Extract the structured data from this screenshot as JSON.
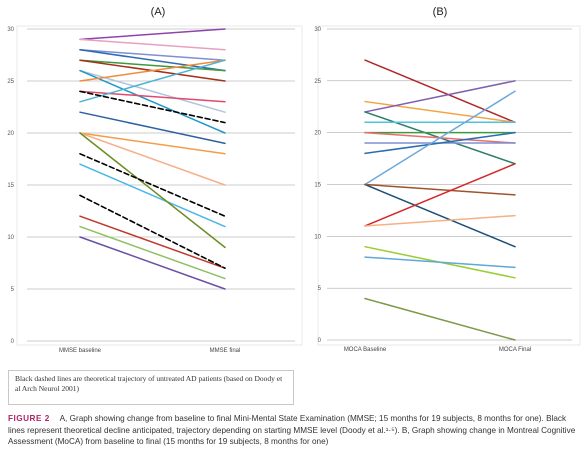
{
  "note": "Black dashed lines are theoretical trajectory of untreated AD patients (based on Doody et al Arch Neurol 2001)",
  "caption": {
    "label": "FIGURE 2",
    "text": "A, Graph showing change from baseline to final Mini-Mental State Examination (MMSE; 15 months for 19 subjects, 8 months for one). Black lines represent theoretical decline anticipated, trajectory depending on starting MMSE level (Doody et al.¹·⁵). B, Graph showing change in Montreal Cognitive Assessment (MoCA) from baseline to final (15 months for 19 subjects, 8 months for one)"
  },
  "chart_data": [
    {
      "panel": "(A)",
      "type": "line",
      "categories": [
        "MMSE baseline",
        "MMSE final"
      ],
      "ylim": [
        0,
        30
      ],
      "yticks": [
        0,
        5,
        10,
        15,
        20,
        25,
        30
      ],
      "grid": true,
      "series": [
        {
          "values": [
            29,
            30
          ],
          "color": "#8e44ad"
        },
        {
          "values": [
            29,
            28
          ],
          "color": "#e8a0c0"
        },
        {
          "values": [
            28,
            27
          ],
          "color": "#7f8fd0"
        },
        {
          "values": [
            28,
            26
          ],
          "color": "#2b6cb0"
        },
        {
          "values": [
            27,
            26
          ],
          "color": "#3c9a3c"
        },
        {
          "values": [
            27,
            25
          ],
          "color": "#a3321c"
        },
        {
          "values": [
            26,
            22
          ],
          "color": "#b0c4de"
        },
        {
          "values": [
            26,
            20
          ],
          "color": "#1f98c4"
        },
        {
          "values": [
            25,
            27
          ],
          "color": "#f08a3c"
        },
        {
          "values": [
            24,
            23
          ],
          "color": "#e04b6b"
        },
        {
          "values": [
            23,
            27
          ],
          "color": "#4eb3d3"
        },
        {
          "values": [
            22,
            19
          ],
          "color": "#2f5fa0"
        },
        {
          "values": [
            20,
            18
          ],
          "color": "#f39c4b"
        },
        {
          "values": [
            20,
            15
          ],
          "color": "#f5b08a"
        },
        {
          "values": [
            17,
            11
          ],
          "color": "#4db6e6"
        },
        {
          "values": [
            12,
            7
          ],
          "color": "#c0392b"
        },
        {
          "values": [
            11,
            6
          ],
          "color": "#8fc064"
        },
        {
          "values": [
            10,
            5
          ],
          "color": "#6a51a3"
        },
        {
          "values": [
            20,
            9
          ],
          "color": "#6b8e23"
        },
        {
          "values": [
            24,
            21
          ],
          "color": "#000000",
          "dashed": true
        },
        {
          "values": [
            18,
            12
          ],
          "color": "#000000",
          "dashed": true
        },
        {
          "values": [
            14,
            7
          ],
          "color": "#000000",
          "dashed": true
        }
      ]
    },
    {
      "panel": "(B)",
      "type": "line",
      "categories": [
        "MOCA Baseline",
        "MOCA Final"
      ],
      "ylim": [
        0,
        30
      ],
      "yticks": [
        0,
        5,
        10,
        15,
        20,
        25,
        30
      ],
      "grid": true,
      "series": [
        {
          "values": [
            27,
            21
          ],
          "color": "#b0282c"
        },
        {
          "values": [
            23,
            21
          ],
          "color": "#f5a442"
        },
        {
          "values": [
            22,
            25
          ],
          "color": "#7f5fb0"
        },
        {
          "values": [
            22,
            17
          ],
          "color": "#2e7d6e"
        },
        {
          "values": [
            21,
            21
          ],
          "color": "#4fc3e0"
        },
        {
          "values": [
            20,
            20
          ],
          "color": "#3c9a3c"
        },
        {
          "values": [
            20,
            19
          ],
          "color": "#e76f6f"
        },
        {
          "values": [
            19,
            19
          ],
          "color": "#7f8fd0"
        },
        {
          "values": [
            18,
            20
          ],
          "color": "#2b6cb0"
        },
        {
          "values": [
            15,
            24
          ],
          "color": "#6fa8dc"
        },
        {
          "values": [
            15,
            9
          ],
          "color": "#1f4e79"
        },
        {
          "values": [
            15,
            14
          ],
          "color": "#a0522d"
        },
        {
          "values": [
            11,
            17
          ],
          "color": "#d62728"
        },
        {
          "values": [
            11,
            12
          ],
          "color": "#f4b183"
        },
        {
          "values": [
            9,
            6
          ],
          "color": "#9acd32"
        },
        {
          "values": [
            8,
            7
          ],
          "color": "#5fa8d8"
        },
        {
          "values": [
            4,
            0
          ],
          "color": "#7a9a4a"
        }
      ]
    }
  ]
}
